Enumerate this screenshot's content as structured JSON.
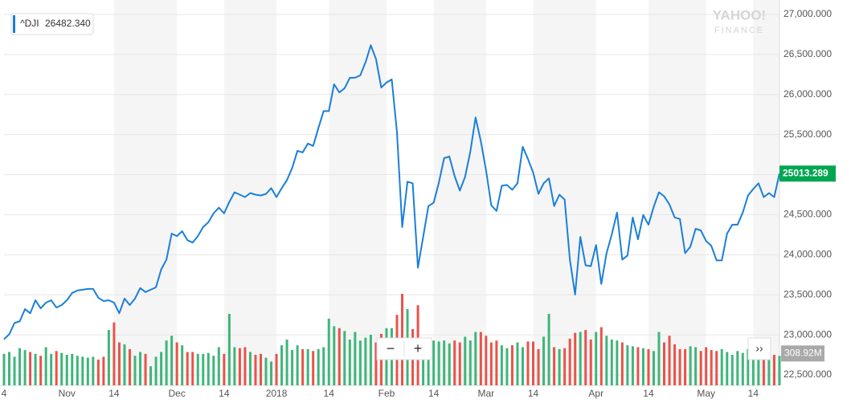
{
  "chart_data": {
    "type": "line",
    "watermark": [
      "YAHOO!",
      "FINANCE"
    ],
    "legend_value": "26482.340",
    "controls": [
      "−",
      "+",
      "››"
    ],
    "categories": [
      "4",
      null,
      null,
      null,
      null,
      null,
      null,
      null,
      null,
      null,
      null,
      null,
      "Nov",
      null,
      null,
      null,
      null,
      null,
      null,
      null,
      null,
      "14",
      null,
      null,
      null,
      null,
      null,
      null,
      null,
      null,
      null,
      null,
      null,
      "Dec",
      null,
      null,
      null,
      null,
      null,
      null,
      null,
      null,
      "14",
      null,
      null,
      null,
      null,
      null,
      null,
      null,
      null,
      null,
      "2018",
      null,
      null,
      null,
      null,
      null,
      null,
      null,
      null,
      null,
      "14",
      null,
      null,
      null,
      null,
      null,
      null,
      null,
      null,
      null,
      null,
      "Feb",
      null,
      null,
      null,
      null,
      null,
      null,
      null,
      null,
      "14",
      null,
      null,
      null,
      null,
      null,
      null,
      null,
      null,
      null,
      "Mar",
      null,
      null,
      null,
      null,
      null,
      null,
      null,
      null,
      "14",
      null,
      null,
      null,
      null,
      null,
      null,
      null,
      null,
      null,
      null,
      null,
      "Apr",
      null,
      null,
      null,
      null,
      null,
      null,
      null,
      null,
      null,
      "14",
      null,
      null,
      null,
      null,
      null,
      null,
      null,
      null,
      null,
      null,
      "May",
      null,
      null,
      null,
      null,
      null,
      null,
      null,
      null,
      "14",
      null,
      null,
      null,
      null,
      null
    ],
    "ylim": [
      22370,
      27130
    ],
    "yticks": [
      {
        "value": 22500,
        "label": "22,500.000"
      },
      {
        "value": 23000,
        "label": "23,000.000"
      },
      {
        "value": 23500,
        "label": "23,500.000"
      },
      {
        "value": 24000,
        "label": "24,000.000"
      },
      {
        "value": 24500,
        "label": "24,500.000"
      },
      {
        "value": 25000,
        "label": "25,000.000"
      },
      {
        "value": 25500,
        "label": "25,500.000"
      },
      {
        "value": 26000,
        "label": "26,000.000"
      },
      {
        "value": 26500,
        "label": "26,500.000"
      },
      {
        "value": 27000,
        "label": "27,000.000"
      }
    ],
    "y2lim": [
      0,
      4000
    ],
    "grid": true,
    "series": [
      {
        "name": "^DJI",
        "color": "#1a7fd9",
        "last_color": "#00a651",
        "values": [
          22946,
          23007,
          23149,
          23169,
          23321,
          23270,
          23432,
          23331,
          23402,
          23432,
          23341,
          23372,
          23432,
          23523,
          23554,
          23564,
          23574,
          23574,
          23463,
          23422,
          23432,
          23402,
          23270,
          23453,
          23372,
          23453,
          23584,
          23534,
          23564,
          23594,
          23817,
          23939,
          24264,
          24233,
          24294,
          24182,
          24152,
          24233,
          24345,
          24406,
          24517,
          24588,
          24517,
          24659,
          24780,
          24750,
          24720,
          24770,
          24750,
          24740,
          24760,
          24831,
          24720,
          24831,
          24932,
          25084,
          25297,
          25277,
          25389,
          25358,
          25581,
          25794,
          25794,
          26128,
          26027,
          26078,
          26209,
          26209,
          26240,
          26402,
          26615,
          26443,
          26088,
          26149,
          26189,
          25530,
          24345,
          24912,
          24892,
          23838,
          24223,
          24608,
          24649,
          24902,
          25206,
          25226,
          24983,
          24801,
          24973,
          25287,
          25713,
          25419,
          25054,
          24618,
          24547,
          24861,
          24871,
          24811,
          24892,
          25348,
          25196,
          25024,
          24760,
          24892,
          24953,
          24608,
          24750,
          24689,
          23939,
          23503,
          24223,
          23868,
          23858,
          24121,
          23635,
          24020,
          24254,
          24527,
          23939,
          23990,
          24466,
          24193,
          24497,
          24375,
          24598,
          24780,
          24730,
          24628,
          24466,
          24446,
          24020,
          24101,
          24324,
          24304,
          24172,
          24111,
          23929,
          23929,
          24264,
          24375,
          24375,
          24527,
          24740,
          24821,
          24892,
          24720,
          24770,
          24720,
          25013.289
        ]
      },
      {
        "axis": "y2",
        "kind": "bar",
        "up_color": "#3fb57a",
        "down_color": "#e8534a",
        "values": [
          330,
          350,
          300,
          390,
          370,
          350,
          330,
          310,
          400,
          330,
          360,
          340,
          320,
          330,
          310,
          300,
          290,
          300,
          270,
          300,
          580,
          660,
          450,
          430,
          380,
          310,
          350,
          330,
          200,
          300,
          350,
          470,
          520,
          450,
          420,
          350,
          350,
          330,
          330,
          340,
          310,
          400,
          330,
          750,
          400,
          390,
          400,
          350,
          320,
          330,
          290,
          250,
          330,
          420,
          480,
          370,
          420,
          380,
          380,
          360,
          380,
          400,
          700,
          620,
          600,
          570,
          480,
          560,
          470,
          500,
          530,
          450,
          540,
          600,
          600,
          740,
          960,
          800,
          590,
          840,
          500,
          360,
          470,
          460,
          470,
          440,
          470,
          450,
          510,
          470,
          560,
          560,
          520,
          450,
          470,
          420,
          390,
          420,
          450,
          400,
          460,
          460,
          380,
          510,
          750,
          400,
          380,
          390,
          490,
          550,
          560,
          580,
          480,
          560,
          610,
          520,
          480,
          470,
          450,
          420,
          410,
          400,
          390,
          380,
          360,
          560,
          450,
          520,
          430,
          380,
          380,
          410,
          400,
          360,
          400,
          370,
          360,
          380,
          350,
          320,
          360,
          340,
          380,
          390,
          300,
          300,
          290,
          320,
          308.92
        ],
        "value_labels": [
          null,
          null,
          null,
          null,
          null,
          null,
          null,
          null,
          null,
          null,
          null,
          null,
          null,
          null,
          null,
          null,
          null,
          null,
          null,
          null,
          null,
          null,
          null,
          null,
          null,
          null,
          null,
          null,
          null,
          null,
          null,
          null,
          null,
          null,
          null,
          null,
          null,
          null,
          null,
          null,
          null,
          null,
          null,
          null,
          null,
          null,
          null,
          null,
          null,
          null,
          null,
          null,
          null,
          null,
          null,
          null,
          null,
          null,
          null,
          null,
          null,
          null,
          null,
          null,
          null,
          null,
          null,
          null,
          null,
          null,
          null,
          null,
          null,
          null,
          null,
          null,
          null,
          null,
          null,
          null,
          null,
          null,
          null,
          null,
          null,
          null,
          null,
          null,
          null,
          null,
          null,
          null,
          null,
          null,
          null,
          null,
          null,
          null,
          null,
          null,
          null,
          null,
          null,
          null,
          null,
          null,
          null,
          null,
          null,
          null,
          null,
          null,
          null,
          null,
          null,
          null,
          null,
          null,
          null,
          null,
          null,
          null,
          null,
          null,
          null,
          null,
          null,
          null,
          null,
          null,
          null,
          null,
          null,
          null,
          null,
          null,
          null,
          null,
          null,
          null,
          null,
          null,
          null,
          null,
          null,
          null,
          null,
          null,
          "308.92M"
        ]
      }
    ]
  }
}
